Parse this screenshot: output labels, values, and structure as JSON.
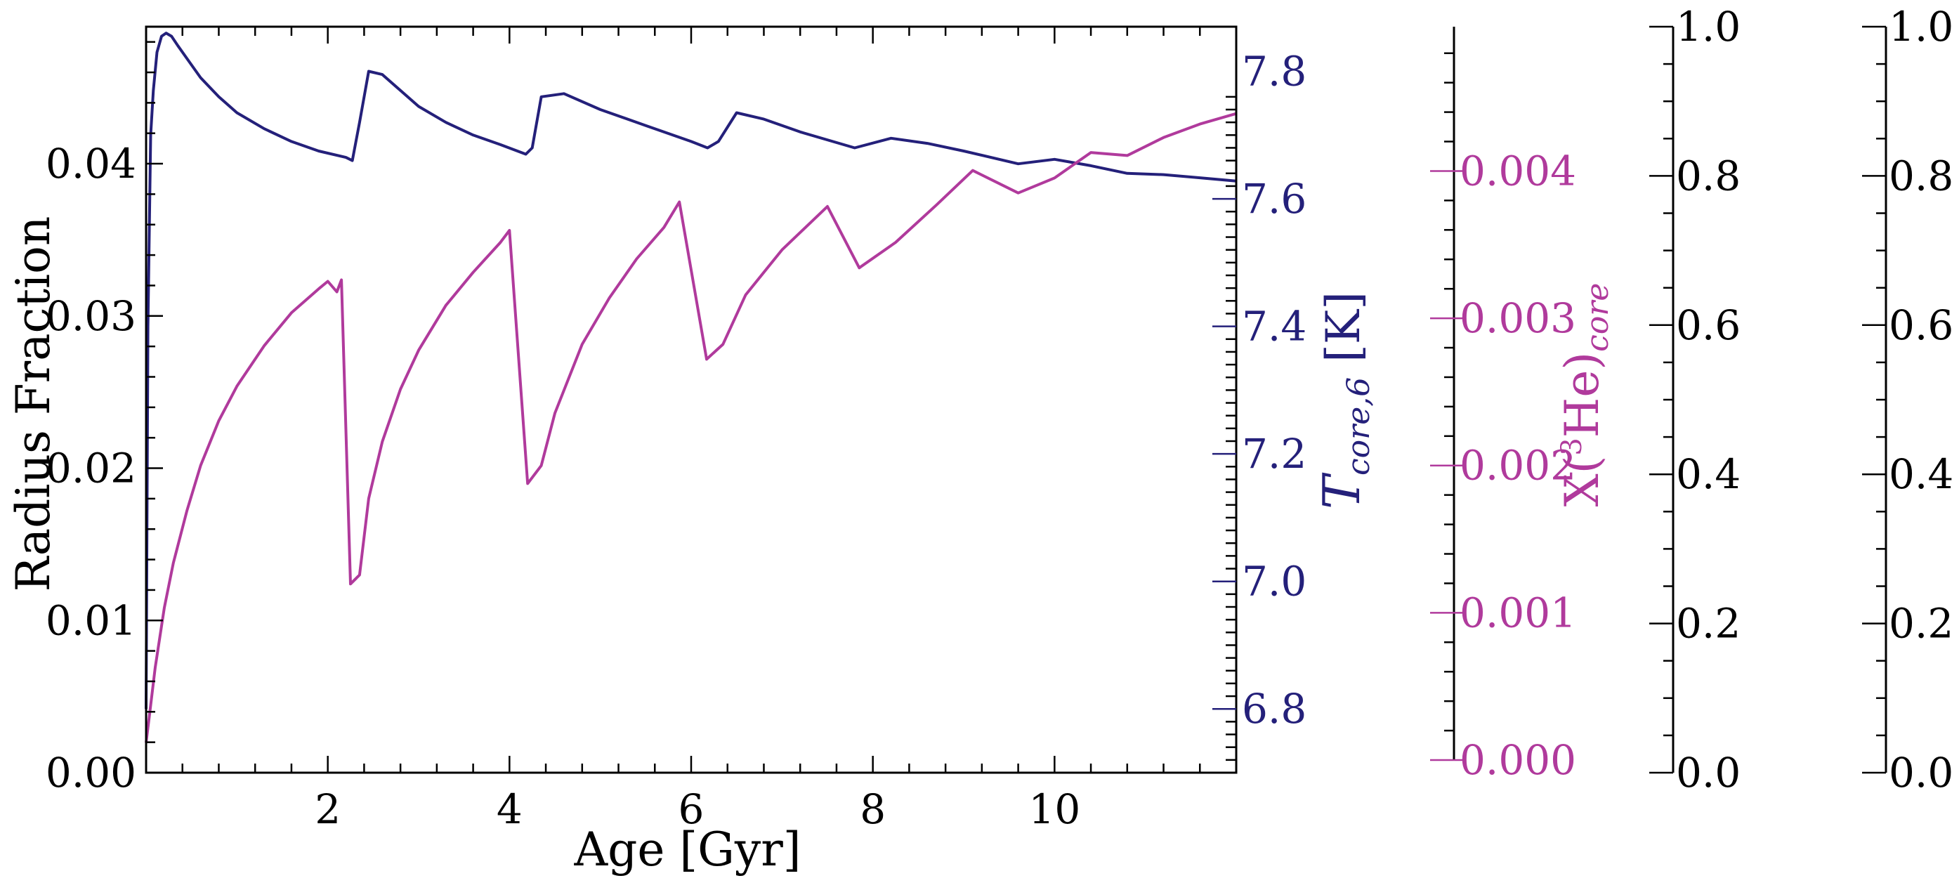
{
  "chart_data": {
    "type": "line",
    "xlabel": "Age [Gyr]",
    "xlim": [
      0,
      12
    ],
    "x_ticks": [
      "2",
      "4",
      "6",
      "8",
      "10"
    ],
    "colors": {
      "temperature": "#24207a",
      "helium3": "#b03a9c",
      "axes": "#000000"
    },
    "axes": [
      {
        "id": "left",
        "label": "Radius Fraction",
        "ylim": [
          0,
          0.049
        ],
        "ticks": [
          "0.00",
          "0.01",
          "0.02",
          "0.03",
          "0.04"
        ]
      },
      {
        "id": "tcore",
        "label_main": "T",
        "label_sub": "core,6",
        "label_suffix": " [K]",
        "ylim": [
          6.7,
          7.87
        ],
        "ticks": [
          "6.8",
          "7.0",
          "7.2",
          "7.4",
          "7.6",
          "7.8"
        ]
      },
      {
        "id": "he3",
        "label_prefix": "X(",
        "label_sup": "3",
        "label_mid": "He)",
        "label_sub": "core",
        "ylim": [
          0,
          0.00498
        ],
        "ticks": [
          "0.000",
          "0.001",
          "0.002",
          "0.003",
          "0.004"
        ]
      },
      {
        "id": "extra1",
        "ylim": [
          0,
          1
        ],
        "ticks": [
          "0.0",
          "0.2",
          "0.4",
          "0.6",
          "0.8",
          "1.0"
        ]
      },
      {
        "id": "extra2",
        "ylim": [
          0,
          1
        ],
        "ticks": [
          "0.0",
          "0.2",
          "0.4",
          "0.6",
          "0.8",
          "1.0"
        ]
      }
    ],
    "series": [
      {
        "axis": "tcore",
        "x": [
          0.0,
          0.02,
          0.05,
          0.08,
          0.12,
          0.17,
          0.22,
          0.28,
          0.35,
          0.45,
          0.6,
          0.8,
          1.0,
          1.3,
          1.6,
          1.9,
          2.2,
          2.27,
          2.35,
          2.45,
          2.6,
          2.8,
          3.0,
          3.3,
          3.6,
          3.9,
          4.18,
          4.25,
          4.35,
          4.6,
          5.0,
          5.5,
          6.0,
          6.18,
          6.3,
          6.5,
          6.8,
          7.2,
          7.8,
          8.2,
          8.6,
          9.0,
          9.6,
          10.0,
          10.4,
          10.8,
          11.2,
          11.6,
          12.0
        ],
        "values": [
          6.8,
          7.4,
          7.7,
          7.77,
          7.83,
          7.855,
          7.86,
          7.855,
          7.84,
          7.82,
          7.79,
          7.76,
          7.735,
          7.71,
          7.69,
          7.675,
          7.665,
          7.66,
          7.72,
          7.8,
          7.795,
          7.77,
          7.745,
          7.72,
          7.7,
          7.685,
          7.67,
          7.68,
          7.76,
          7.765,
          7.74,
          7.715,
          7.69,
          7.68,
          7.69,
          7.735,
          7.725,
          7.705,
          7.68,
          7.695,
          7.687,
          7.675,
          7.655,
          7.662,
          7.652,
          7.64,
          7.638,
          7.633,
          7.628
        ]
      },
      {
        "axis": "he3",
        "x": [
          0.0,
          0.05,
          0.1,
          0.2,
          0.3,
          0.45,
          0.6,
          0.8,
          1.0,
          1.3,
          1.6,
          1.9,
          2.0,
          2.1,
          2.15,
          2.25,
          2.35,
          2.45,
          2.6,
          2.8,
          3.0,
          3.3,
          3.6,
          3.9,
          4.0,
          4.2,
          4.35,
          4.5,
          4.8,
          5.1,
          5.4,
          5.7,
          5.87,
          6.17,
          6.35,
          6.6,
          7.0,
          7.5,
          7.85,
          8.25,
          8.7,
          9.1,
          9.6,
          10.0,
          10.4,
          10.8,
          11.2,
          11.6,
          12.0
        ],
        "values": [
          0.0002,
          0.00045,
          0.0007,
          0.0011,
          0.0014,
          0.00175,
          0.00205,
          0.00235,
          0.00258,
          0.00285,
          0.00307,
          0.00323,
          0.00328,
          0.00321,
          0.00329,
          0.00126,
          0.00132,
          0.00183,
          0.00221,
          0.00256,
          0.00282,
          0.00312,
          0.00334,
          0.00354,
          0.00362,
          0.00193,
          0.00205,
          0.0024,
          0.00286,
          0.00317,
          0.00343,
          0.00364,
          0.00381,
          0.00276,
          0.00286,
          0.00319,
          0.00349,
          0.00378,
          0.00337,
          0.00354,
          0.00379,
          0.00402,
          0.00387,
          0.00397,
          0.00414,
          0.00412,
          0.00424,
          0.00433,
          0.0044
        ]
      }
    ]
  }
}
